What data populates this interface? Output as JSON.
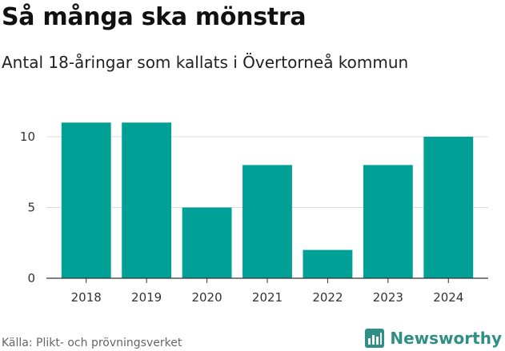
{
  "header": {
    "title": "Så många ska mönstra",
    "subtitle": "Antal 18-åringar som kallats i Övertorneå kommun"
  },
  "footer": {
    "source": "Källa: Plikt- och prövningsverket",
    "brand": "Newsworthy",
    "brand_icon": "bar-chart-logo-icon"
  },
  "colors": {
    "bar": "#00a096",
    "grid": "#dddddd",
    "axis": "#333333",
    "brand": "#2f8f86"
  },
  "chart_data": {
    "type": "bar",
    "categories": [
      "2018",
      "2019",
      "2020",
      "2021",
      "2022",
      "2023",
      "2024"
    ],
    "values": [
      11,
      11,
      5,
      8,
      2,
      8,
      10
    ],
    "title": "Så många ska mönstra",
    "subtitle": "Antal 18-åringar som kallats i Övertorneå kommun",
    "xlabel": "",
    "ylabel": "",
    "ylim": [
      0,
      11
    ],
    "yticks": [
      0,
      5,
      10
    ],
    "grid": true,
    "legend": "none"
  }
}
